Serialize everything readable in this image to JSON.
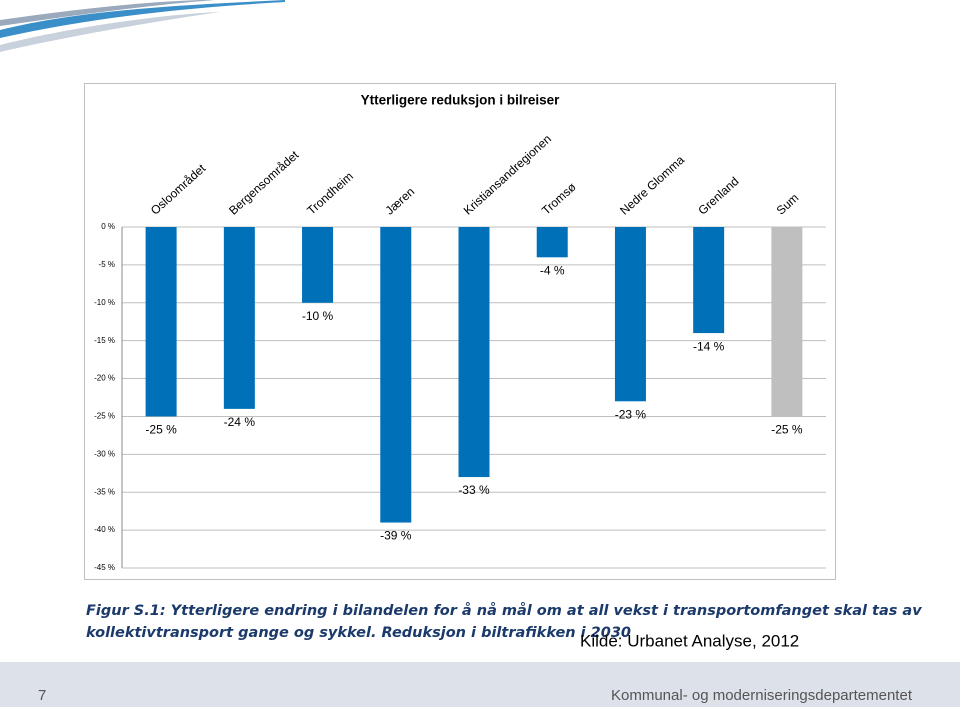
{
  "chart_data": {
    "type": "bar",
    "title": "Ytterligere reduksjon i bilreiser",
    "categories": [
      "Osloområdet",
      "Bergensområdet",
      "Trondheim",
      "Jæren",
      "Kristiansandregionen",
      "Tromsø",
      "Nedre Glomma",
      "Grenland",
      "Sum"
    ],
    "values": [
      -25,
      -24,
      -10,
      -39,
      -33,
      -4,
      -23,
      -14,
      -25
    ],
    "value_labels": [
      "-25 %",
      "-24 %",
      "-10 %",
      "-39 %",
      "-33 %",
      "-4 %",
      "-23 %",
      "-14 %",
      "-25 %"
    ],
    "colors": [
      "#0070b8",
      "#0070b8",
      "#0070b8",
      "#0070b8",
      "#0070b8",
      "#0070b8",
      "#0070b8",
      "#0070b8",
      "#bfbfbf"
    ],
    "ylim": [
      0,
      -45
    ],
    "yticks": [
      {
        "value": 0,
        "label": "0 %"
      },
      {
        "value": -5,
        "label": "-5 %"
      },
      {
        "value": -10,
        "label": "-10 %"
      },
      {
        "value": -15,
        "label": "-15 %"
      },
      {
        "value": -20,
        "label": "-20 %"
      },
      {
        "value": -25,
        "label": "-25 %"
      },
      {
        "value": -30,
        "label": "-30 %"
      },
      {
        "value": -35,
        "label": "-35 %"
      },
      {
        "value": -40,
        "label": "-40 %"
      },
      {
        "value": -45,
        "label": "-45 %"
      }
    ],
    "grid": true
  },
  "slide": {
    "caption": [
      "Figur S.1: Ytterligere endring i bilandelen for å nå mål om at all vekst i transportomfanget skal tas av",
      "kollektivtransport gange og sykkel. Reduksjon i biltrafikken i 2030"
    ],
    "source": "Kilde: Urbanet Analyse, 2012",
    "page_number": "7",
    "footer": "Kommunal- og moderniseringsdepartementet"
  }
}
